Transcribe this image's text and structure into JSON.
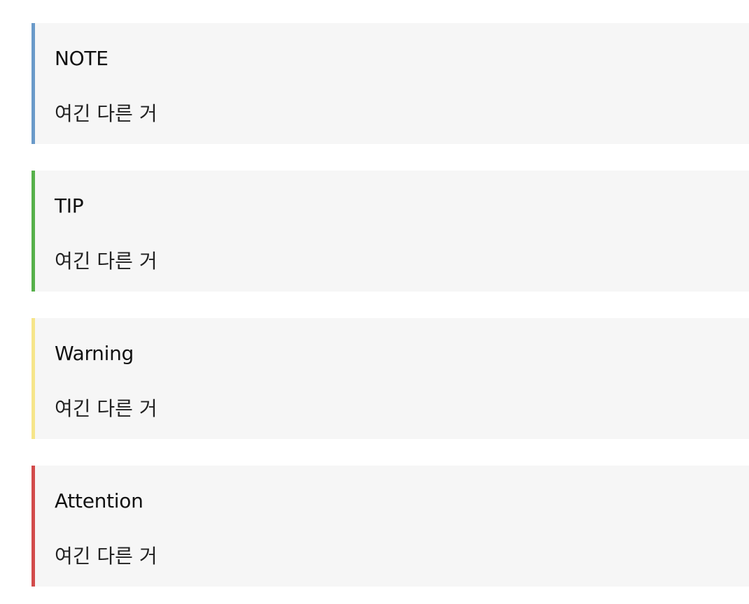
{
  "callouts": [
    {
      "type": "note",
      "title": "NOTE",
      "body": "여긴 다른 거",
      "color": "#6a9ac9"
    },
    {
      "type": "tip",
      "title": "TIP",
      "body": "여긴 다른 거",
      "color": "#56b04a"
    },
    {
      "type": "warning",
      "title": "Warning",
      "body": "여긴 다른 거",
      "color": "#f6e58a"
    },
    {
      "type": "attention",
      "title": "Attention",
      "body": "여긴 다른 거",
      "color": "#d24b4b"
    }
  ],
  "colors": {
    "callout_background": "#f6f6f6",
    "page_background": "#ffffff"
  }
}
